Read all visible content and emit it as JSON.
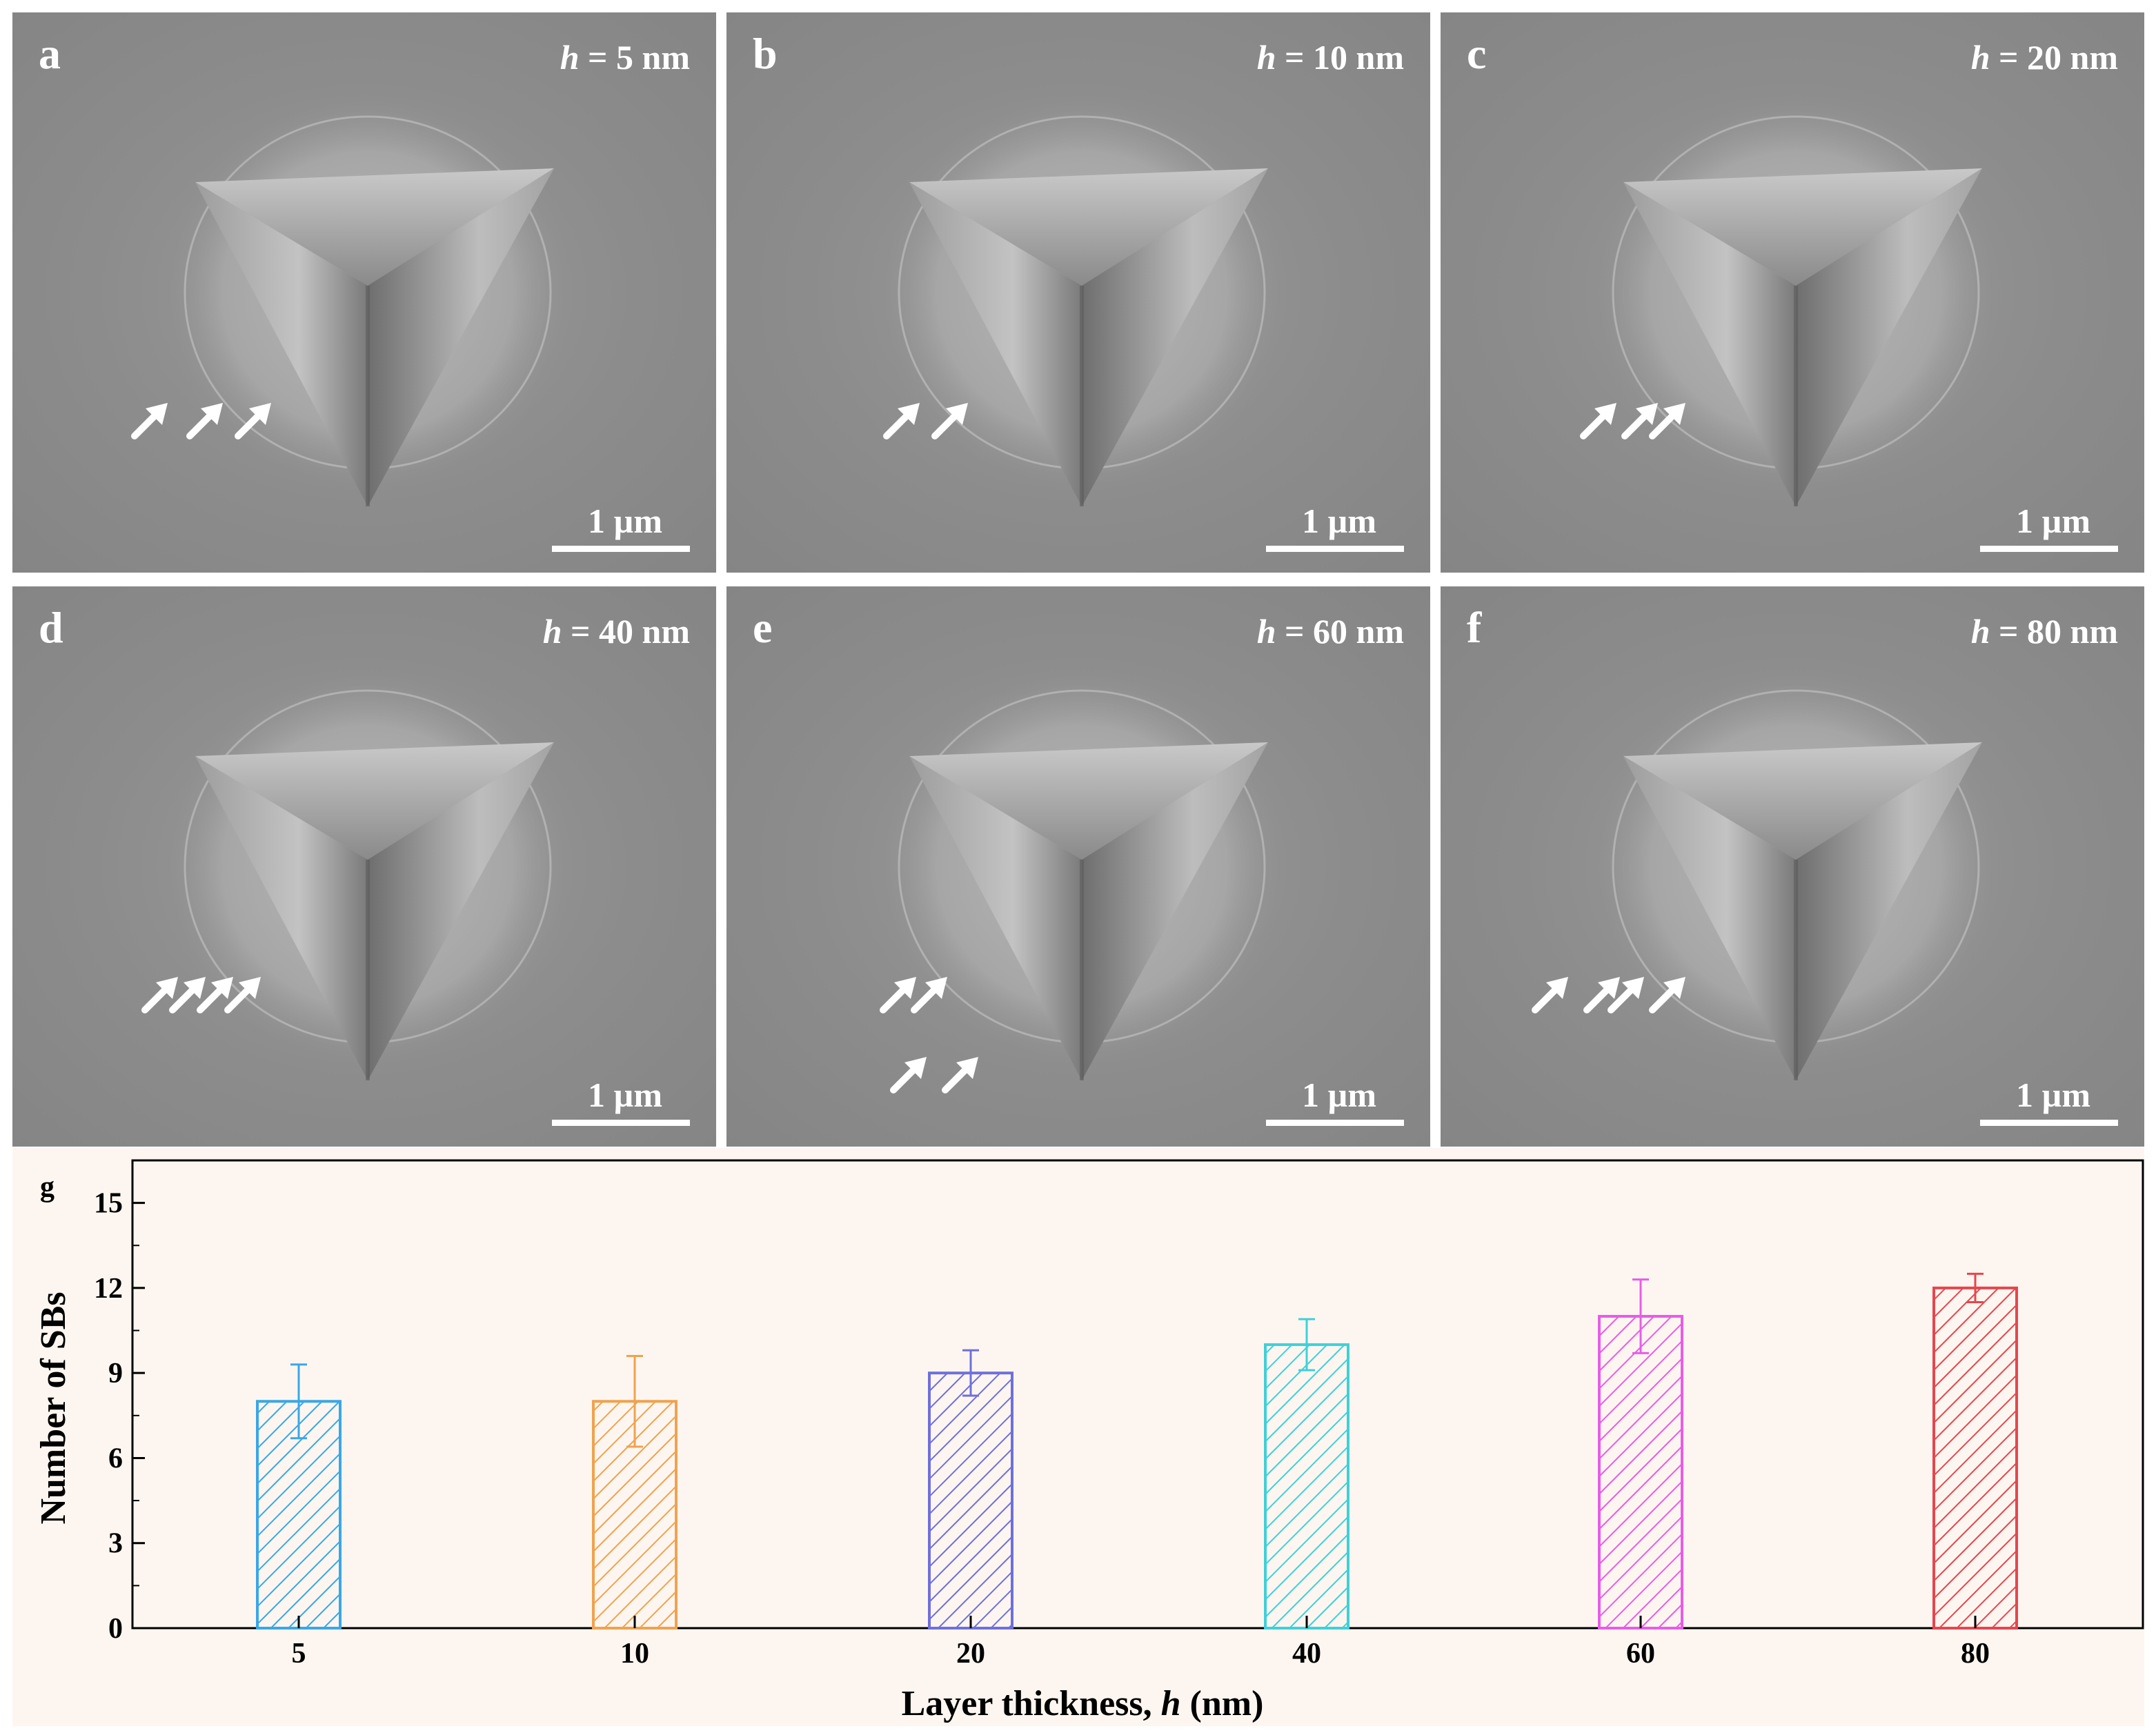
{
  "panels": [
    {
      "letter": "a",
      "h_var": "h",
      "h_rest": " = 5 nm",
      "scale": "1 µm",
      "arrows": 3
    },
    {
      "letter": "b",
      "h_var": "h",
      "h_rest": " = 10 nm",
      "scale": "1 µm",
      "arrows": 2
    },
    {
      "letter": "c",
      "h_var": "h",
      "h_rest": " = 20 nm",
      "scale": "1 µm",
      "arrows": 3
    },
    {
      "letter": "d",
      "h_var": "h",
      "h_rest": " = 40 nm",
      "scale": "1 µm",
      "arrows": 4
    },
    {
      "letter": "e",
      "h_var": "h",
      "h_rest": " = 60 nm",
      "scale": "1 µm",
      "arrows": 4
    },
    {
      "letter": "f",
      "h_var": "h",
      "h_rest": " = 80 nm",
      "scale": "1 µm",
      "arrows": 4
    }
  ],
  "chart_data": {
    "type": "bar",
    "panel_label": "g",
    "categories": [
      "5",
      "10",
      "20",
      "40",
      "60",
      "80"
    ],
    "values": [
      8,
      8,
      9,
      10,
      11,
      12
    ],
    "errors": [
      1.3,
      1.6,
      0.8,
      0.9,
      1.3,
      0.5
    ],
    "colors": [
      "#3aa7e6",
      "#f0a24e",
      "#6f6fdc",
      "#3fd0d8",
      "#e75ce8",
      "#e8454d"
    ],
    "xlabel_prefix": "Layer thickness, ",
    "xlabel_var": "h",
    "xlabel_suffix": " (nm)",
    "ylabel": "Number of SBs",
    "ylim": [
      0,
      16.5
    ],
    "yticks": [
      0,
      3,
      6,
      9,
      12,
      15
    ],
    "pattern": "diagonal-hatch"
  }
}
